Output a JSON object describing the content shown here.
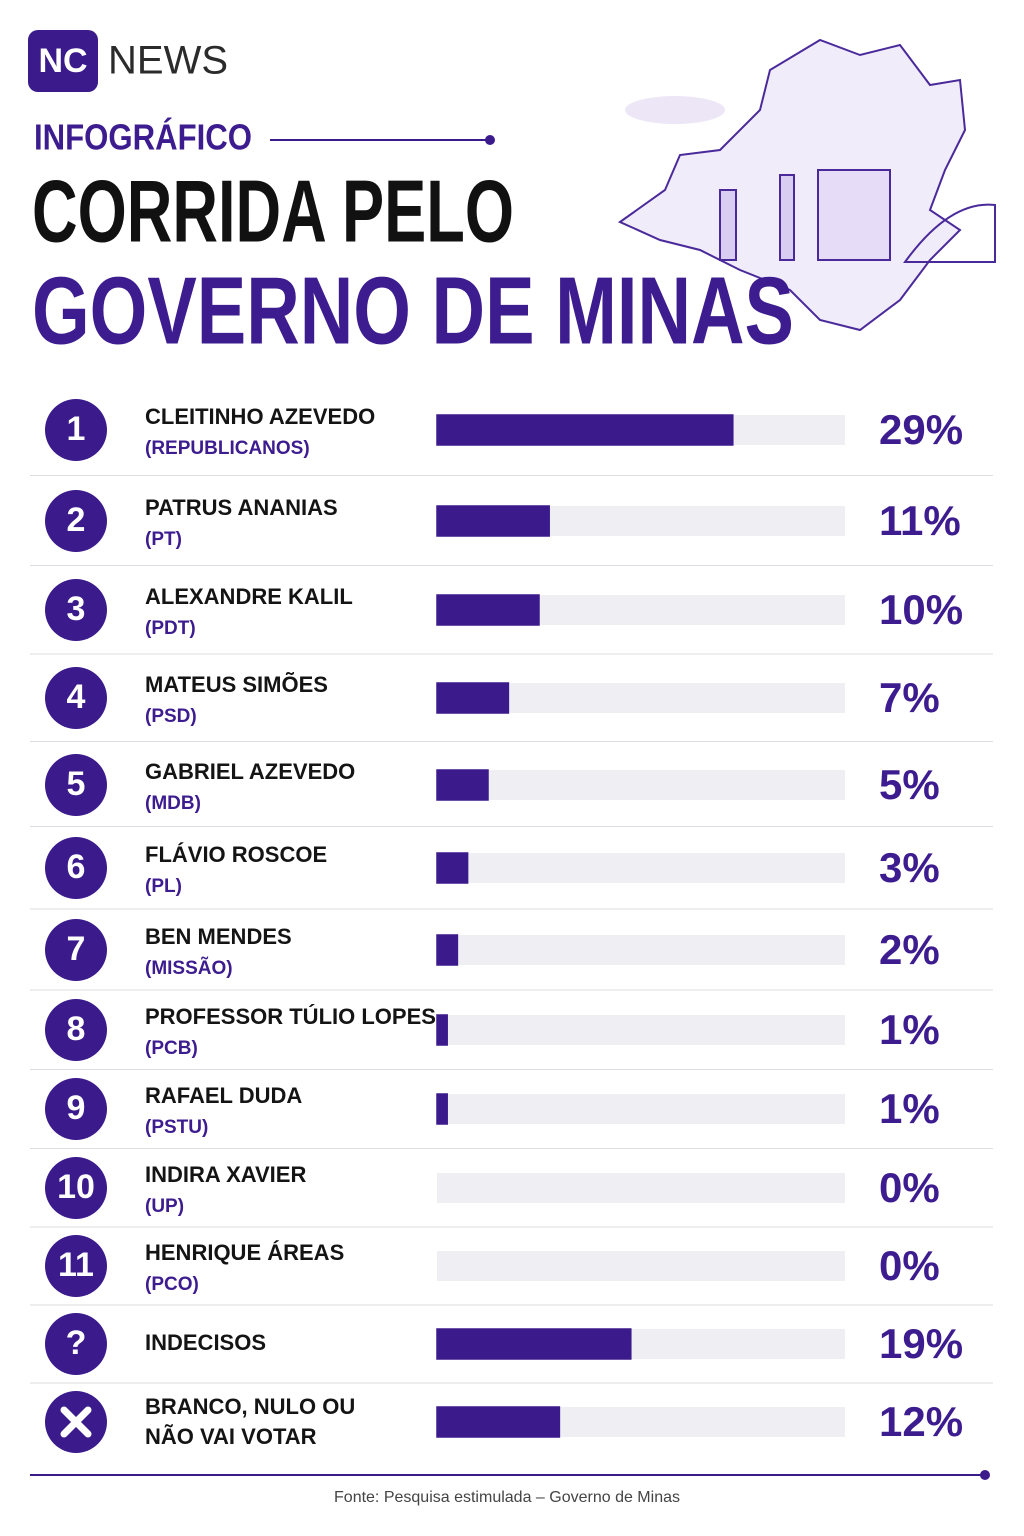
{
  "brand": {
    "logo": "NC",
    "name": "NEWS"
  },
  "kicker": "INFOGRÁFICO",
  "source": "Fonte: Pesquisa estimulada – Governo de Minas",
  "chart_data": {
    "type": "bar",
    "orientation": "horizontal",
    "title_lines": [
      "CORRIDA PELO",
      "GOVERNO DE MINAS"
    ],
    "ranks": [
      "1",
      "2",
      "3",
      "4",
      "5",
      "6",
      "7",
      "8",
      "9",
      "10",
      "11",
      "?",
      null
    ],
    "categories": [
      "CLEITINHO AZEVEDO",
      "PATRUS ANANIAS",
      "ALEXANDRE KALIL",
      "MATEUS SIMÕES",
      "GABRIEL AZEVEDO",
      "FLÁVIO ROSCOE",
      "BEN MENDES",
      "PROFESSOR TÚLIO LOPES",
      "RAFAEL DUDA",
      "INDIRA XAVIER",
      "HENRIQUE ÁREAS",
      "INDECISOS",
      "BRANCO, NULO OU\nNÃO VAI VOTAR"
    ],
    "parties": [
      "(REPUBLICANOS)",
      "(PT)",
      "(PDT)",
      "(PSD)",
      "(MDB)",
      "(PL)",
      "(MISSÃO)",
      "(PCB)",
      "(PSTU)",
      "(UP)",
      "(PCO)",
      null,
      null
    ],
    "values": [
      29,
      11,
      10,
      7,
      5,
      3,
      2,
      1,
      1,
      0,
      0,
      19,
      12
    ],
    "value_labels": [
      "29%",
      "11%",
      "10%",
      "7%",
      "5%",
      "3%",
      "2%",
      "1%",
      "1%",
      "0%",
      "0%",
      "19%",
      "12%"
    ],
    "color": "#3b1a8c",
    "track_color": "#eeeef3",
    "xlim": [
      0,
      40
    ]
  }
}
